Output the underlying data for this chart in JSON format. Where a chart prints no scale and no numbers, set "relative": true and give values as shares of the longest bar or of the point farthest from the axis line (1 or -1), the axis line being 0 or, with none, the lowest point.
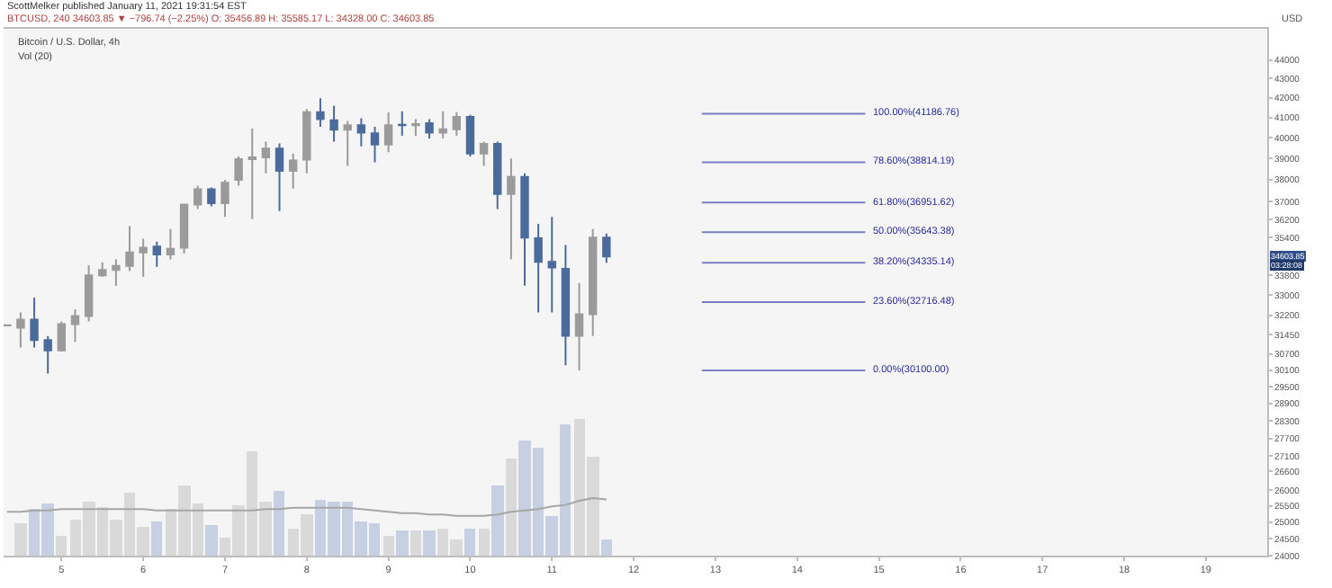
{
  "chart_data": [
    {
      "type": "candlestick",
      "title": "ScottMelker published January 11, 2021 19:31:54 EST",
      "subtitle": "BTCUSD, 240 34603.85 ▼ −796.74 (−2.25%) O: 35456.89 H: 35585.17 L: 34328.00 C: 34603.85",
      "ylabel": "USD",
      "x": [
        "2021-01-04T08:00",
        "2021-01-04T12:00",
        "2021-01-04T16:00",
        "2021-01-04T20:00",
        "2021-01-05T00:00",
        "2021-01-05T04:00",
        "2021-01-05T08:00",
        "2021-01-05T12:00",
        "2021-01-05T16:00",
        "2021-01-05T20:00",
        "2021-01-06T00:00",
        "2021-01-06T04:00",
        "2021-01-06T08:00",
        "2021-01-06T12:00",
        "2021-01-06T16:00",
        "2021-01-06T20:00",
        "2021-01-07T00:00",
        "2021-01-07T04:00",
        "2021-01-07T08:00",
        "2021-01-07T12:00",
        "2021-01-07T16:00",
        "2021-01-07T20:00",
        "2021-01-08T00:00",
        "2021-01-08T04:00",
        "2021-01-08T08:00",
        "2021-01-08T12:00",
        "2021-01-08T16:00",
        "2021-01-08T20:00",
        "2021-01-09T00:00",
        "2021-01-09T04:00",
        "2021-01-09T08:00",
        "2021-01-09T12:00",
        "2021-01-09T16:00",
        "2021-01-09T20:00",
        "2021-01-10T00:00",
        "2021-01-10T04:00",
        "2021-01-10T08:00",
        "2021-01-10T12:00",
        "2021-01-10T16:00",
        "2021-01-10T20:00",
        "2021-01-11T00:00",
        "2021-01-11T04:00",
        "2021-01-11T08:00",
        "2021-01-11T12:00",
        "2021-01-11T16:00"
      ],
      "ohlc": [
        [
          31800,
          31820,
          31780,
          31810
        ],
        [
          31710,
          32310,
          30950,
          32030
        ],
        [
          32030,
          32900,
          30950,
          31235
        ],
        [
          31235,
          31390,
          29980,
          30840
        ],
        [
          30840,
          31960,
          30800,
          31850
        ],
        [
          31850,
          32430,
          31170,
          32170
        ],
        [
          32170,
          34230,
          31960,
          33810
        ],
        [
          33810,
          34350,
          33740,
          34030
        ],
        [
          34030,
          34470,
          33370,
          34200
        ],
        [
          34200,
          35900,
          33980,
          34770
        ],
        [
          34770,
          35360,
          33740,
          34970
        ],
        [
          35020,
          35230,
          34160,
          34680
        ],
        [
          34680,
          35780,
          34470,
          34920
        ],
        [
          34970,
          36900,
          34720,
          36860
        ],
        [
          36860,
          37720,
          36660,
          37560
        ],
        [
          37560,
          37640,
          36780,
          36920
        ],
        [
          36920,
          37990,
          36310,
          37860
        ],
        [
          37990,
          39100,
          37720,
          38970
        ],
        [
          38970,
          40450,
          36210,
          39050
        ],
        [
          39050,
          39810,
          38300,
          39470
        ],
        [
          39470,
          39730,
          36570,
          38410
        ],
        [
          38410,
          39240,
          37590,
          38900
        ],
        [
          38950,
          41430,
          38300,
          41270
        ],
        [
          41270,
          41980,
          40540,
          40920
        ],
        [
          40870,
          41590,
          39810,
          40400
        ],
        [
          40400,
          40830,
          38650,
          40620
        ],
        [
          40620,
          40970,
          39580,
          40250
        ],
        [
          40220,
          40540,
          38820,
          39670
        ],
        [
          39670,
          41270,
          39300,
          40620
        ],
        [
          40640,
          41320,
          40100,
          40620
        ],
        [
          40620,
          40920,
          40100,
          40680
        ],
        [
          40720,
          40920,
          39960,
          40250
        ],
        [
          40250,
          41320,
          39960,
          40420
        ],
        [
          40420,
          41270,
          40100,
          41030
        ],
        [
          41030,
          41140,
          39100,
          39240
        ],
        [
          39240,
          39810,
          38650,
          39700
        ],
        [
          39700,
          39810,
          36660,
          37340
        ],
        [
          37340,
          39000,
          34470,
          38130
        ],
        [
          38130,
          38300,
          33380,
          35400
        ],
        [
          35380,
          36000,
          32310,
          34370
        ],
        [
          34370,
          36310,
          32310,
          34130
        ],
        [
          34080,
          35090,
          30290,
          31400
        ],
        [
          31400,
          33490,
          30100,
          32240
        ],
        [
          32240,
          35780,
          31390,
          35400
        ],
        [
          35400,
          35580,
          34330,
          34600
        ]
      ],
      "colors": [
        "#9b9b9b",
        "#9b9b9b",
        "#4c6b9d",
        "#4c6b9d",
        "#9b9b9b",
        "#9b9b9b",
        "#9b9b9b",
        "#9b9b9b",
        "#9b9b9b",
        "#9b9b9b",
        "#9b9b9b",
        "#4c6b9d",
        "#9b9b9b",
        "#9b9b9b",
        "#9b9b9b",
        "#4c6b9d",
        "#9b9b9b",
        "#9b9b9b",
        "#9b9b9b",
        "#9b9b9b",
        "#4c6b9d",
        "#9b9b9b",
        "#9b9b9b",
        "#4c6b9d",
        "#4c6b9d",
        "#9b9b9b",
        "#4c6b9d",
        "#4c6b9d",
        "#9b9b9b",
        "#4c6b9d",
        "#9b9b9b",
        "#4c6b9d",
        "#9b9b9b",
        "#9b9b9b",
        "#4c6b9d",
        "#9b9b9b",
        "#4c6b9d",
        "#9b9b9b",
        "#4c6b9d",
        "#4c6b9d",
        "#4c6b9d",
        "#4c6b9d",
        "#9b9b9b",
        "#9b9b9b",
        "#4c6b9d"
      ],
      "series": [
        {
          "type": "line",
          "name": "100.00%(41186.76)",
          "color": "#7b7fc4",
          "x": [
            "2021-01-12T20:00",
            "2021-01-14T20:00"
          ],
          "values": [
            41186.76,
            41186.76
          ]
        },
        {
          "type": "line",
          "name": "78.60%(38814.19)",
          "color": "#7b7fc4",
          "x": [
            "2021-01-12T20:00",
            "2021-01-14T20:00"
          ],
          "values": [
            38814.19,
            38814.19
          ]
        },
        {
          "type": "line",
          "name": "61.80%(36951.62)",
          "color": "#7b7fc4",
          "x": [
            "2021-01-12T20:00",
            "2021-01-14T20:00"
          ],
          "values": [
            36951.62,
            36951.62
          ]
        },
        {
          "type": "line",
          "name": "50.00%(35643.38)",
          "color": "#7b7fc4",
          "x": [
            "2021-01-12T20:00",
            "2021-01-14T20:00"
          ],
          "values": [
            35643.38,
            35643.38
          ]
        },
        {
          "type": "line",
          "name": "38.20%(34335.14)",
          "color": "#7b7fc4",
          "x": [
            "2021-01-12T20:00",
            "2021-01-14T20:00"
          ],
          "values": [
            34335.14,
            34335.14
          ]
        },
        {
          "type": "line",
          "name": "23.60%(32716.48)",
          "color": "#7b7fc4",
          "x": [
            "2021-01-12T20:00",
            "2021-01-14T20:00"
          ],
          "values": [
            32716.48,
            32716.48
          ]
        },
        {
          "type": "line",
          "name": "0.00%(30100.00)",
          "color": "#7b7fc4",
          "x": [
            "2021-01-12T20:00",
            "2021-01-14T20:00"
          ],
          "values": [
            30100.0,
            30100.0
          ]
        }
      ],
      "xlim": [
        "2021-01-04T07:00",
        "2021-01-19T18:00"
      ],
      "xticks": [
        {
          "value": "2021-01-05",
          "label": "5"
        },
        {
          "value": "2021-01-06",
          "label": "6"
        },
        {
          "value": "2021-01-07",
          "label": "7"
        },
        {
          "value": "2021-01-08",
          "label": "8"
        },
        {
          "value": "2021-01-09",
          "label": "9"
        },
        {
          "value": "2021-01-10",
          "label": "10"
        },
        {
          "value": "2021-01-11",
          "label": "11"
        },
        {
          "value": "2021-01-12",
          "label": "12"
        },
        {
          "value": "2021-01-13",
          "label": "13"
        },
        {
          "value": "2021-01-14",
          "label": "14"
        },
        {
          "value": "2021-01-15",
          "label": "15"
        },
        {
          "value": "2021-01-16",
          "label": "16"
        },
        {
          "value": "2021-01-17",
          "label": "17"
        },
        {
          "value": "2021-01-18",
          "label": "18"
        },
        {
          "value": "2021-01-19",
          "label": "19"
        }
      ],
      "ylim": [
        24000,
        45700
      ],
      "yticks": [
        24000,
        24500,
        25000,
        25500,
        26000,
        26600,
        27100,
        27700,
        28300,
        28900,
        29500,
        30100,
        30700,
        31450,
        32200,
        33000,
        33800,
        35400,
        36200,
        37000,
        38000,
        39000,
        40000,
        41000,
        42000,
        43000,
        44000
      ],
      "log": "y",
      "grid": false,
      "legend": false,
      "annotations": [
        "Bitcoin / U.S. Dollar, 4h",
        {
          "text": "34603.85",
          "y": 34603.85
        },
        "03:28:08"
      ]
    },
    {
      "type": "bar",
      "relative": true,
      "x": [
        "2021-01-04T08:00",
        "2021-01-04T12:00",
        "2021-01-04T16:00",
        "2021-01-04T20:00",
        "2021-01-05T00:00",
        "2021-01-05T04:00",
        "2021-01-05T08:00",
        "2021-01-05T12:00",
        "2021-01-05T16:00",
        "2021-01-05T20:00",
        "2021-01-06T00:00",
        "2021-01-06T04:00",
        "2021-01-06T08:00",
        "2021-01-06T12:00",
        "2021-01-06T16:00",
        "2021-01-06T20:00",
        "2021-01-07T00:00",
        "2021-01-07T04:00",
        "2021-01-07T08:00",
        "2021-01-07T12:00",
        "2021-01-07T16:00",
        "2021-01-07T20:00",
        "2021-01-08T00:00",
        "2021-01-08T04:00",
        "2021-01-08T08:00",
        "2021-01-08T12:00",
        "2021-01-08T16:00",
        "2021-01-08T20:00",
        "2021-01-09T00:00",
        "2021-01-09T04:00",
        "2021-01-09T08:00",
        "2021-01-09T12:00",
        "2021-01-09T16:00",
        "2021-01-09T20:00",
        "2021-01-10T00:00",
        "2021-01-10T04:00",
        "2021-01-10T08:00",
        "2021-01-10T12:00",
        "2021-01-10T16:00",
        "2021-01-10T20:00",
        "2021-01-11T00:00",
        "2021-01-11T04:00",
        "2021-01-11T08:00",
        "2021-01-11T12:00",
        "2021-01-11T16:00"
      ],
      "series": [
        {
          "type": "bar",
          "values": [
            null,
            0.24,
            0.35,
            0.38,
            0.15,
            0.26,
            0.4,
            0.36,
            0.27,
            0.46,
            0.21,
            0.25,
            0.35,
            0.52,
            0.38,
            0.22,
            0.14,
            0.37,
            0.76,
            0.39,
            0.47,
            0.2,
            0.3,
            0.41,
            0.39,
            0.4,
            0.25,
            0.24,
            0.15,
            0.18,
            0.18,
            0.19,
            0.2,
            0.12,
            0.2,
            0.2,
            0.52,
            0.71,
            0.84,
            0.79,
            0.29,
            0.96,
            1,
            0.72,
            0.12
          ],
          "colors": [
            "#d9d9d9",
            "#d9d9d9",
            "#c6d0e2",
            "#c6d0e2",
            "#d9d9d9",
            "#d9d9d9",
            "#d9d9d9",
            "#d9d9d9",
            "#d9d9d9",
            "#d9d9d9",
            "#d9d9d9",
            "#c6d0e2",
            "#d9d9d9",
            "#d9d9d9",
            "#d9d9d9",
            "#c6d0e2",
            "#d9d9d9",
            "#d9d9d9",
            "#d9d9d9",
            "#d9d9d9",
            "#c6d0e2",
            "#d9d9d9",
            "#d9d9d9",
            "#c6d0e2",
            "#c6d0e2",
            "#c6d0e2",
            "#c6d0e2",
            "#c6d0e2",
            "#d9d9d9",
            "#c6d0e2",
            "#d9d9d9",
            "#c6d0e2",
            "#d9d9d9",
            "#d9d9d9",
            "#c6d0e2",
            "#d9d9d9",
            "#c6d0e2",
            "#d9d9d9",
            "#c6d0e2",
            "#c6d0e2",
            "#c6d0e2",
            "#c6d0e2",
            "#d9d9d9",
            "#d9d9d9",
            "#c6d0e2"
          ]
        },
        {
          "type": "line",
          "color": "#a6a6a6",
          "values": [
            0.32,
            0.32,
            0.33,
            0.33,
            0.34,
            0.34,
            0.34,
            0.34,
            0.34,
            0.34,
            0.34,
            0.33,
            0.33,
            0.33,
            0.33,
            0.33,
            0.33,
            0.33,
            0.33,
            0.34,
            0.34,
            0.35,
            0.35,
            0.35,
            0.35,
            0.35,
            0.34,
            0.33,
            0.32,
            0.31,
            0.31,
            0.3,
            0.3,
            0.29,
            0.29,
            0.29,
            0.3,
            0.32,
            0.33,
            0.34,
            0.36,
            0.37,
            0.4,
            0.42,
            0.41
          ]
        }
      ],
      "xlim": [
        "2021-01-04T07:00",
        "2021-01-19T18:00"
      ],
      "annotations": [
        "Vol (20)"
      ]
    }
  ]
}
